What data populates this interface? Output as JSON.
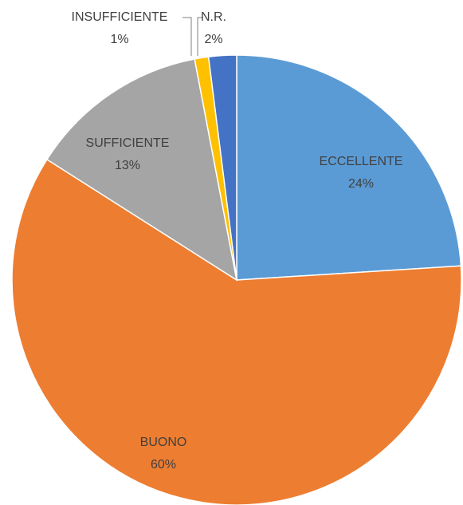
{
  "chart_data": {
    "type": "pie",
    "categories": [
      "ECCELLENTE",
      "BUONO",
      "SUFFICIENTE",
      "INSUFFICIENTE",
      "N.R."
    ],
    "values": [
      24,
      60,
      13,
      1,
      2
    ],
    "value_labels": [
      "24%",
      "60%",
      "13%",
      "1%",
      "2%"
    ],
    "colors": [
      "#5b9bd5",
      "#ed7d31",
      "#a5a5a5",
      "#ffc000",
      "#4472c4"
    ]
  }
}
